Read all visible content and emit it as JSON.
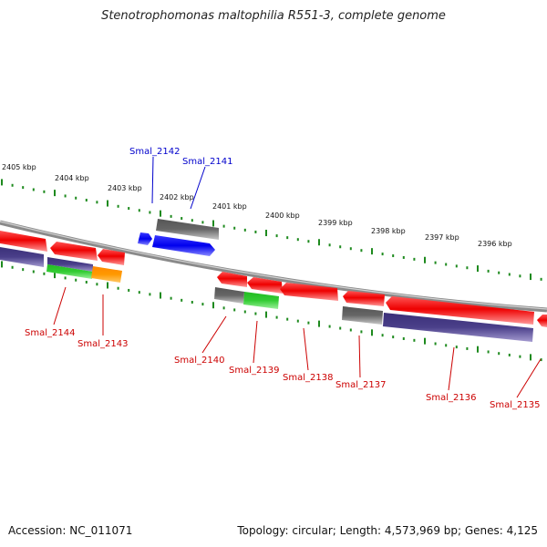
{
  "title": "Stenotrophomonas maltophilia R551-3, complete genome",
  "footer": {
    "accession": "Accession: NC_011071",
    "topology": "Topology: circular; Length: 4,573,969 bp; Genes: 4,125"
  },
  "kbp_labels": [
    "2405 kbp",
    "2404 kbp",
    "2403 kbp",
    "2402 kbp",
    "2401 kbp",
    "2400 kbp",
    "2399 kbp",
    "2398 kbp",
    "2397 kbp",
    "2396 kbp"
  ],
  "gene_labels": {
    "top": [
      "Smal_2142",
      "Smal_2141"
    ],
    "bottom": [
      "Smal_2144",
      "Smal_2143",
      "Smal_2140",
      "Smal_2139",
      "Smal_2138",
      "Smal_2137",
      "Smal_2136",
      "Smal_2135"
    ]
  },
  "colors": {
    "highlight_label": "#0000cc",
    "gene_label": "#cc0000",
    "tick": "#1e8a1e",
    "backbone": "#8a8a8a",
    "gene_red": "#ff0000",
    "gene_blue": "#0000ff",
    "gene_gray": "#666666",
    "gene_purple": "#4a3f8a",
    "gene_green": "#33cc33",
    "gene_orange": "#ff9900"
  }
}
